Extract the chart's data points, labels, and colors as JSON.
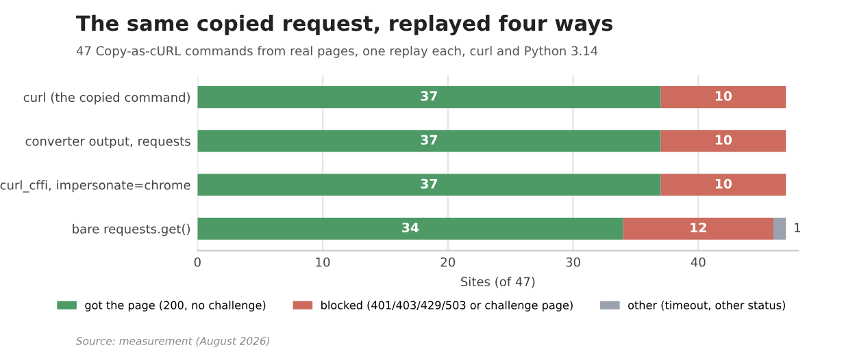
{
  "chart_data": {
    "type": "bar",
    "orientation": "horizontal",
    "stacked": true,
    "title": "The same copied request, replayed four ways",
    "subtitle": "47 Copy-as-cURL commands from real pages, one replay each, curl and Python 3.14",
    "xlabel": "Sites (of 47)",
    "categories": [
      "curl (the copied command)",
      "converter output, requests",
      "curl_cffi, impersonate=chrome",
      "bare requests.get()"
    ],
    "series": [
      {
        "name": "got the page (200, no challenge)",
        "color": "#4e9a67",
        "values": [
          37,
          37,
          37,
          34
        ],
        "value_labels": [
          "37",
          "37",
          "37",
          "34"
        ]
      },
      {
        "name": "blocked (401/403/429/503 or challenge page)",
        "color": "#cc6b5e",
        "values": [
          10,
          10,
          10,
          12
        ],
        "value_labels": [
          "10",
          "10",
          "10",
          "12"
        ]
      },
      {
        "name": "other (timeout, other status)",
        "color": "#9aa3ad",
        "values": [
          null,
          null,
          null,
          1
        ],
        "value_labels": [
          null,
          null,
          null,
          "1"
        ]
      }
    ],
    "xlim": [
      0,
      48
    ],
    "xticks": [
      0,
      10,
      20,
      30,
      40
    ],
    "grid": "x",
    "legend": "bottom",
    "annotations": [
      "Source: measurement (August 2026)"
    ]
  }
}
